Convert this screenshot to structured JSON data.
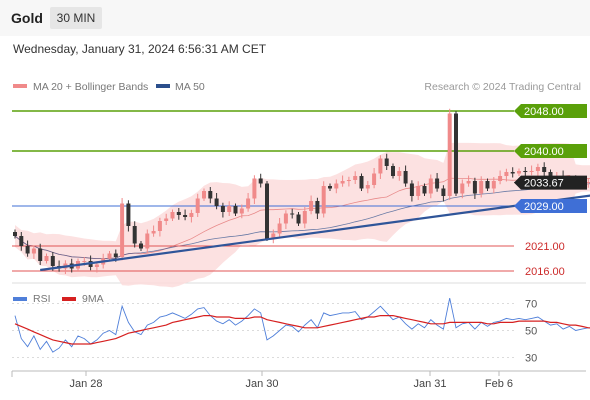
{
  "header": {
    "instrument": "Gold",
    "timeframe": "30 MIN",
    "datetime": "Wednesday, January 31, 2024 6:56:31 AM CET"
  },
  "legend": {
    "ma20": "MA 20 + Bollinger Bands",
    "ma50": "MA 50",
    "rsi": "RSI",
    "ma9": "9MA"
  },
  "attribution": "Research © 2024 Trading Central",
  "colors": {
    "up": "#f08a8a",
    "down": "#333333",
    "ma20_band": "#fbdcdc",
    "ma20_line": "#e88a8a",
    "ma50_line": "#2b4f8c",
    "resistance": "#5aa00a",
    "support": "#3f6fd6",
    "target_support": "#e05555",
    "trendline": "#2f5599",
    "arrow": "#2b5fb0",
    "rsi": "#4f7fd9",
    "ma9": "#d62020",
    "current": "#222222"
  },
  "chart_data": [
    {
      "type": "candlestick",
      "title": "Gold",
      "timeframe": "30 MIN",
      "x_ticks": [
        "Jan 28",
        "Jan 30",
        "Jan 31",
        "Feb 6"
      ],
      "ylim": [
        2014,
        2051
      ],
      "current_price": 2033.67,
      "levels": [
        {
          "value": 2048.0,
          "label": "2048.00",
          "kind": "resistance"
        },
        {
          "value": 2040.0,
          "label": "2040.00",
          "kind": "resistance"
        },
        {
          "value": 2033.67,
          "label": "2033.67",
          "kind": "current"
        },
        {
          "value": 2029.0,
          "label": "2029.00",
          "kind": "pivot"
        },
        {
          "value": 2021.0,
          "label": "2021.00",
          "kind": "support"
        },
        {
          "value": 2016.0,
          "label": "2016.00",
          "kind": "support"
        }
      ],
      "closes": [
        2023,
        2021,
        2019.5,
        2020.5,
        2018,
        2019,
        2017,
        2016.5,
        2017.5,
        2016.5,
        2018,
        2018,
        2016.8,
        2017.3,
        2018.5,
        2019.5,
        2018.8,
        2029.5,
        2025,
        2021.5,
        2020.5,
        2023.5,
        2024,
        2026,
        2026.5,
        2027.8,
        2027.2,
        2026.8,
        2027.6,
        2030.5,
        2032,
        2030.5,
        2029,
        2027.8,
        2029,
        2027.5,
        2028.5,
        2030.5,
        2034.5,
        2033.5,
        2022.5,
        2023.5,
        2025.5,
        2027.5,
        2027.3,
        2025.5,
        2028,
        2030,
        2027.5,
        2033,
        2032.5,
        2033.5,
        2034,
        2034.2,
        2035,
        2032.5,
        2033.2,
        2035.5,
        2038.5,
        2037,
        2035,
        2036,
        2033.5,
        2031,
        2033,
        2031.5,
        2034.5,
        2032.5,
        2031,
        2047.5,
        2031.5,
        2033.5,
        2034,
        2031.5,
        2034,
        2032.5,
        2034,
        2035,
        2035.8,
        2035.5,
        2036,
        2035.8,
        2036,
        2036.8,
        2035.8,
        2034.5,
        2035,
        2033.5,
        2034.2,
        2033.2,
        2033.6,
        2033.8,
        2033.67
      ],
      "trendlines": [
        {
          "name": "support trendline",
          "from": {
            "index": 4,
            "value": 2016.2
          },
          "to": {
            "index": 92,
            "value": 2031.2
          }
        }
      ],
      "projection": {
        "from": {
          "index": 92,
          "value": 2033.67
        },
        "to": {
          "index": 101,
          "value": 2046.5
        }
      }
    },
    {
      "type": "line",
      "title": "RSI",
      "ylim": [
        20,
        80
      ],
      "y_ticks": [
        70,
        50,
        30
      ],
      "series": [
        {
          "name": "RSI",
          "values": [
            61,
            44,
            38,
            46,
            36,
            42,
            34,
            37,
            43,
            38,
            46,
            44,
            40,
            43,
            48,
            50,
            47,
            68,
            56,
            49,
            47,
            54,
            56,
            60,
            61,
            63,
            61,
            59,
            62,
            66,
            67,
            61,
            57,
            55,
            58,
            54,
            57,
            61,
            66,
            63,
            43,
            46,
            50,
            54,
            53,
            49,
            54,
            58,
            52,
            63,
            61,
            62,
            63,
            63,
            64,
            58,
            60,
            64,
            68,
            63,
            58,
            60,
            55,
            51,
            55,
            52,
            58,
            54,
            51,
            74,
            52,
            55,
            56,
            51,
            56,
            53,
            56,
            57,
            59,
            58,
            59,
            58,
            59,
            60,
            57,
            54,
            55,
            51,
            53,
            50,
            51,
            52,
            51
          ]
        },
        {
          "name": "9MA",
          "values": [
            55,
            53,
            51,
            49,
            47,
            45,
            43,
            42,
            41,
            40,
            40,
            40,
            40,
            41,
            42,
            43,
            44,
            46,
            48,
            49,
            50,
            51,
            52,
            53,
            54,
            56,
            57,
            58,
            59,
            60,
            61,
            61,
            60,
            60,
            60,
            59,
            59,
            59,
            60,
            60,
            58,
            57,
            56,
            55,
            54,
            53,
            52,
            52,
            52,
            53,
            54,
            55,
            56,
            57,
            58,
            59,
            60,
            60,
            61,
            61,
            61,
            60,
            59,
            58,
            57,
            56,
            55,
            55,
            55,
            56,
            56,
            56,
            56,
            56,
            56,
            55,
            55,
            56,
            56,
            56,
            57,
            57,
            57,
            57,
            57,
            56,
            56,
            55,
            54,
            54,
            53,
            52,
            52
          ]
        }
      ]
    }
  ]
}
